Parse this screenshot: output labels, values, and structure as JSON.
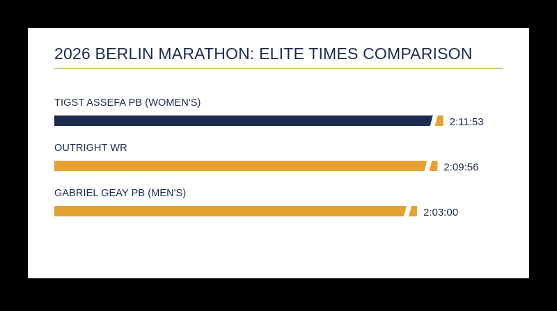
{
  "colors": {
    "background": "#000000",
    "card": "#ffffff",
    "title": "#1b2a4e",
    "rule": "#e2b55c",
    "navy": "#1b2a4e",
    "gold": "#e5a233",
    "text": "#1b2a4e"
  },
  "chart_data": {
    "type": "bar",
    "orientation": "horizontal",
    "title": "2026 BERLIN MARATHON: ELITE TIMES COMPARISON",
    "value_unit": "h:mm:ss",
    "categories": [
      "TIGST ASSEFA PB (WOMEN'S)",
      "OUTRIGHT WR",
      "GABRIEL GEAY PB (MEN'S)"
    ],
    "values": [
      "2:11:53",
      "2:09:56",
      "2:03:00"
    ],
    "bar_colors": [
      "navy",
      "gold",
      "gold"
    ],
    "series": [
      {
        "values": [
          7913,
          7796,
          7380
        ]
      }
    ],
    "xlim": [
      0,
      8000
    ],
    "grid": false,
    "legend": "none"
  }
}
